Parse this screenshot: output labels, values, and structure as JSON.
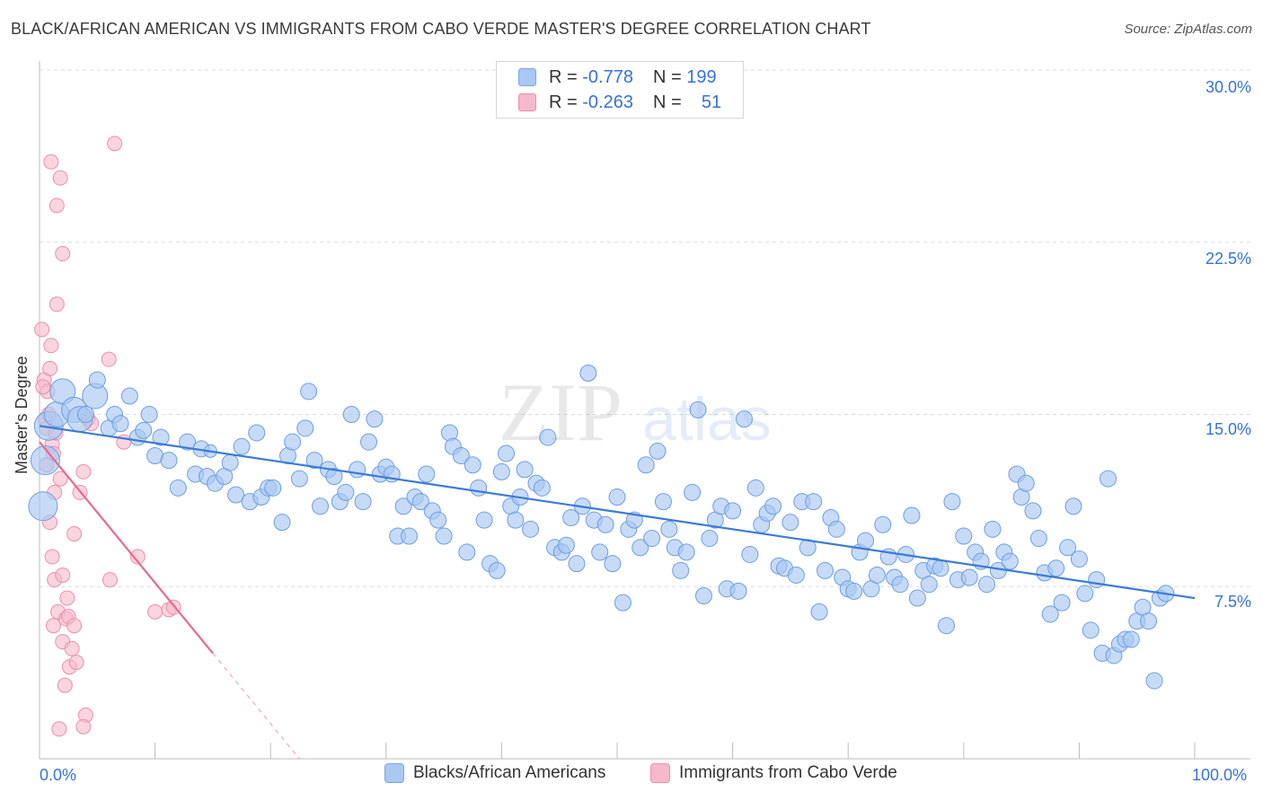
{
  "title": "BLACK/AFRICAN AMERICAN VS IMMIGRANTS FROM CABO VERDE MASTER'S DEGREE CORRELATION CHART",
  "source": "Source: ZipAtlas.com",
  "watermark": {
    "zip": "ZIP",
    "atlas": "atlas"
  },
  "legend": {
    "rows": [
      {
        "r_label": "R =",
        "r_value": "-0.778",
        "n_label": "N =",
        "n_value": "199",
        "color": "#a9c8f2"
      },
      {
        "r_label": "R =",
        "r_value": "-0.263",
        "n_label": "N =",
        "n_value": "51",
        "color": "#f6b9cb"
      }
    ]
  },
  "bottom_legend": [
    "Blacks/African Americans",
    "Immigrants from Cabo Verde"
  ],
  "chart_data": {
    "type": "scatter",
    "title": "BLACK/AFRICAN AMERICAN VS IMMIGRANTS FROM CABO VERDE MASTER'S DEGREE CORRELATION CHART",
    "xlabel": "",
    "ylabel": "Master's Degree",
    "xlim": [
      0,
      100
    ],
    "ylim": [
      0,
      30
    ],
    "x_tick_labels": [
      "0.0%",
      "100.0%"
    ],
    "y_tick_labels": [
      "7.5%",
      "15.0%",
      "22.5%",
      "30.0%"
    ],
    "y_ticks": [
      7.5,
      15,
      22.5,
      30
    ],
    "grid": true,
    "legend_position": "top-center",
    "colors": {
      "blue": "#3a7bd5",
      "blue_fill": "#a9c8f2",
      "pink": "#e56a93",
      "pink_fill": "#f6b9cb",
      "label": "#3572d6"
    },
    "series": [
      {
        "name": "Blacks/African Americans",
        "trend": {
          "x": [
            0,
            100
          ],
          "y": [
            14.5,
            7.0
          ]
        },
        "points": [
          [
            0.3,
            11.0,
            3
          ],
          [
            0.5,
            13.0,
            3
          ],
          [
            0.8,
            14.5,
            3
          ],
          [
            1.5,
            15.0,
            2
          ],
          [
            2.0,
            16.0,
            2
          ],
          [
            3.0,
            15.2,
            2
          ],
          [
            3.5,
            14.8,
            2
          ],
          [
            4.0,
            15.0,
            1
          ],
          [
            4.8,
            15.8,
            2
          ],
          [
            5.0,
            16.5,
            1
          ],
          [
            6.0,
            14.4,
            1
          ],
          [
            6.5,
            15.0,
            1
          ],
          [
            7.0,
            14.6,
            1
          ],
          [
            7.8,
            15.8,
            1
          ],
          [
            8.5,
            14.0,
            1
          ],
          [
            9.0,
            14.3,
            1
          ],
          [
            9.5,
            15.0,
            1
          ],
          [
            10.0,
            13.2,
            1
          ],
          [
            10.5,
            14.0,
            1
          ],
          [
            11.2,
            13.0,
            1
          ],
          [
            12.0,
            11.8,
            1
          ],
          [
            12.8,
            13.8,
            1
          ],
          [
            13.5,
            12.4,
            1
          ],
          [
            14.0,
            13.5,
            1
          ],
          [
            14.5,
            12.3,
            1
          ],
          [
            14.8,
            13.4,
            0
          ],
          [
            15.2,
            12.0,
            1
          ],
          [
            16.0,
            12.3,
            1
          ],
          [
            16.5,
            12.9,
            1
          ],
          [
            17.0,
            11.5,
            1
          ],
          [
            17.5,
            13.6,
            1
          ],
          [
            18.2,
            11.2,
            1
          ],
          [
            18.8,
            14.2,
            1
          ],
          [
            19.2,
            11.4,
            1
          ],
          [
            19.8,
            11.8,
            1
          ],
          [
            20.2,
            11.8,
            1
          ],
          [
            21.0,
            10.3,
            1
          ],
          [
            21.5,
            13.2,
            1
          ],
          [
            21.9,
            13.8,
            1
          ],
          [
            22.5,
            12.2,
            1
          ],
          [
            23.0,
            14.4,
            1
          ],
          [
            23.3,
            16.0,
            1
          ],
          [
            23.8,
            13.0,
            1
          ],
          [
            24.3,
            11.0,
            1
          ],
          [
            25.0,
            12.6,
            1
          ],
          [
            25.5,
            12.3,
            1
          ],
          [
            26.0,
            11.2,
            1
          ],
          [
            26.5,
            11.6,
            1
          ],
          [
            27.0,
            15.0,
            1
          ],
          [
            27.5,
            12.6,
            1
          ],
          [
            28.0,
            11.2,
            1
          ],
          [
            28.5,
            13.8,
            1
          ],
          [
            29.0,
            14.8,
            1
          ],
          [
            29.5,
            12.4,
            1
          ],
          [
            30.0,
            12.7,
            1
          ],
          [
            30.5,
            12.4,
            1
          ],
          [
            31.0,
            9.7,
            1
          ],
          [
            31.5,
            11.0,
            1
          ],
          [
            32.0,
            9.7,
            1
          ],
          [
            32.5,
            11.4,
            1
          ],
          [
            33.0,
            11.2,
            1
          ],
          [
            33.5,
            12.4,
            1
          ],
          [
            34.0,
            10.8,
            1
          ],
          [
            34.5,
            10.4,
            1
          ],
          [
            35.0,
            9.7,
            1
          ],
          [
            35.5,
            14.2,
            1
          ],
          [
            35.8,
            13.6,
            1
          ],
          [
            36.5,
            13.2,
            1
          ],
          [
            37.0,
            9.0,
            1
          ],
          [
            37.5,
            12.8,
            1
          ],
          [
            38.0,
            11.8,
            1
          ],
          [
            38.5,
            10.4,
            1
          ],
          [
            39.0,
            8.5,
            1
          ],
          [
            39.6,
            8.2,
            1
          ],
          [
            40.0,
            12.5,
            1
          ],
          [
            40.4,
            13.3,
            1
          ],
          [
            40.8,
            11.0,
            1
          ],
          [
            41.2,
            10.4,
            1
          ],
          [
            41.6,
            11.4,
            1
          ],
          [
            42.0,
            12.6,
            1
          ],
          [
            42.5,
            10.0,
            1
          ],
          [
            43.0,
            12.0,
            1
          ],
          [
            43.5,
            11.8,
            1
          ],
          [
            44.0,
            14.0,
            1
          ],
          [
            44.6,
            9.2,
            1
          ],
          [
            45.2,
            9.0,
            1
          ],
          [
            45.6,
            9.3,
            1
          ],
          [
            46.0,
            10.5,
            1
          ],
          [
            46.5,
            8.5,
            1
          ],
          [
            47.0,
            11.0,
            1
          ],
          [
            47.5,
            16.8,
            1
          ],
          [
            48.0,
            10.4,
            1
          ],
          [
            48.5,
            9.0,
            1
          ],
          [
            49.0,
            10.2,
            1
          ],
          [
            49.6,
            8.5,
            1
          ],
          [
            50.0,
            11.4,
            1
          ],
          [
            50.5,
            6.8,
            1
          ],
          [
            51.0,
            10.0,
            1
          ],
          [
            51.5,
            10.4,
            1
          ],
          [
            52.0,
            9.2,
            1
          ],
          [
            52.5,
            12.8,
            1
          ],
          [
            53.0,
            9.6,
            1
          ],
          [
            53.5,
            13.4,
            1
          ],
          [
            54.0,
            11.2,
            1
          ],
          [
            54.5,
            10.0,
            1
          ],
          [
            55.0,
            9.2,
            1
          ],
          [
            55.5,
            8.2,
            1
          ],
          [
            56.0,
            9.0,
            1
          ],
          [
            56.5,
            11.6,
            1
          ],
          [
            57.0,
            15.2,
            1
          ],
          [
            57.5,
            7.1,
            1
          ],
          [
            58.0,
            9.6,
            1
          ],
          [
            58.5,
            10.4,
            1
          ],
          [
            59.0,
            11.0,
            1
          ],
          [
            59.5,
            7.4,
            1
          ],
          [
            60.0,
            10.8,
            1
          ],
          [
            60.5,
            7.3,
            1
          ],
          [
            61.0,
            14.8,
            1
          ],
          [
            61.5,
            8.9,
            1
          ],
          [
            62.0,
            11.8,
            1
          ],
          [
            62.5,
            10.2,
            1
          ],
          [
            63.0,
            10.7,
            1
          ],
          [
            63.5,
            11.0,
            1
          ],
          [
            64.0,
            8.4,
            1
          ],
          [
            64.5,
            8.3,
            1
          ],
          [
            65.0,
            10.3,
            1
          ],
          [
            65.5,
            8.0,
            1
          ],
          [
            66.0,
            11.2,
            1
          ],
          [
            66.5,
            9.2,
            1
          ],
          [
            67.0,
            11.2,
            1
          ],
          [
            67.5,
            6.4,
            1
          ],
          [
            68.0,
            8.2,
            1
          ],
          [
            68.5,
            10.5,
            1
          ],
          [
            69.0,
            10.0,
            1
          ],
          [
            69.5,
            7.9,
            1
          ],
          [
            70.0,
            7.4,
            1
          ],
          [
            70.5,
            7.3,
            1
          ],
          [
            71.0,
            9.0,
            1
          ],
          [
            71.5,
            9.5,
            1
          ],
          [
            72.0,
            7.4,
            1
          ],
          [
            72.5,
            8.0,
            1
          ],
          [
            73.0,
            10.2,
            1
          ],
          [
            73.5,
            8.8,
            1
          ],
          [
            74.0,
            7.9,
            1
          ],
          [
            74.5,
            7.6,
            1
          ],
          [
            75.0,
            8.9,
            1
          ],
          [
            75.5,
            10.6,
            1
          ],
          [
            76.0,
            7.0,
            1
          ],
          [
            76.5,
            8.2,
            1
          ],
          [
            77.0,
            7.6,
            1
          ],
          [
            77.5,
            8.4,
            1
          ],
          [
            78.0,
            8.3,
            1
          ],
          [
            78.5,
            5.8,
            1
          ],
          [
            79.0,
            11.2,
            1
          ],
          [
            79.5,
            7.8,
            1
          ],
          [
            80.0,
            9.7,
            1
          ],
          [
            80.5,
            7.9,
            1
          ],
          [
            81.0,
            9.0,
            1
          ],
          [
            81.5,
            8.6,
            1
          ],
          [
            82.0,
            7.6,
            1
          ],
          [
            82.5,
            10.0,
            1
          ],
          [
            83.0,
            8.2,
            1
          ],
          [
            83.5,
            9.0,
            1
          ],
          [
            84.0,
            8.6,
            1
          ],
          [
            84.6,
            12.4,
            1
          ],
          [
            85.0,
            11.4,
            1
          ],
          [
            85.4,
            12.0,
            1
          ],
          [
            86.0,
            10.8,
            1
          ],
          [
            86.5,
            9.6,
            1
          ],
          [
            87.0,
            8.1,
            1
          ],
          [
            87.5,
            6.3,
            1
          ],
          [
            88.0,
            8.3,
            1
          ],
          [
            88.5,
            6.8,
            1
          ],
          [
            89.0,
            9.2,
            1
          ],
          [
            89.5,
            11.0,
            1
          ],
          [
            90.0,
            8.7,
            1
          ],
          [
            90.5,
            7.2,
            1
          ],
          [
            91.0,
            5.6,
            1
          ],
          [
            91.5,
            7.8,
            1
          ],
          [
            92.0,
            4.6,
            1
          ],
          [
            92.5,
            12.2,
            1
          ],
          [
            93.0,
            4.5,
            1
          ],
          [
            93.5,
            5.0,
            1
          ],
          [
            94.0,
            5.2,
            1
          ],
          [
            94.5,
            5.2,
            1
          ],
          [
            95.0,
            6.0,
            1
          ],
          [
            95.5,
            6.6,
            1
          ],
          [
            96.0,
            6.0,
            1
          ],
          [
            96.5,
            3.4,
            1
          ],
          [
            97.0,
            7.0,
            1
          ],
          [
            97.5,
            7.2,
            1
          ]
        ]
      },
      {
        "name": "Immigrants from Cabo Verde",
        "trend": {
          "x": [
            0,
            15
          ],
          "y": [
            13.8,
            4.6
          ]
        },
        "trend_dashed": {
          "x": [
            15,
            22.5
          ],
          "y": [
            4.6,
            0
          ]
        },
        "points": [
          [
            0.2,
            18.7,
            0
          ],
          [
            0.4,
            16.5,
            0
          ],
          [
            0.5,
            14.8,
            0
          ],
          [
            0.6,
            14.4,
            0
          ],
          [
            0.7,
            16.0,
            0
          ],
          [
            0.8,
            15.0,
            0
          ],
          [
            0.9,
            17.0,
            0
          ],
          [
            1.0,
            18.0,
            0
          ],
          [
            1.1,
            13.7,
            0
          ],
          [
            1.2,
            13.3,
            0
          ],
          [
            1.0,
            26.0,
            0
          ],
          [
            1.3,
            11.6,
            0
          ],
          [
            1.1,
            8.8,
            0
          ],
          [
            1.3,
            7.8,
            0
          ],
          [
            1.2,
            5.8,
            0
          ],
          [
            1.5,
            24.1,
            0
          ],
          [
            1.5,
            19.8,
            0
          ],
          [
            1.6,
            6.4,
            0
          ],
          [
            1.7,
            1.3,
            0
          ],
          [
            1.8,
            25.3,
            0
          ],
          [
            2.0,
            22.0,
            0
          ],
          [
            2.0,
            8.0,
            0
          ],
          [
            2.0,
            5.1,
            0
          ],
          [
            2.2,
            3.2,
            0
          ],
          [
            2.3,
            6.1,
            0
          ],
          [
            2.4,
            7.0,
            0
          ],
          [
            2.5,
            6.2,
            0
          ],
          [
            2.6,
            4.0,
            0
          ],
          [
            2.8,
            4.8,
            0
          ],
          [
            3.0,
            5.8,
            0
          ],
          [
            3.2,
            4.2,
            0
          ],
          [
            3.5,
            11.6,
            0
          ],
          [
            3.8,
            12.5,
            0
          ],
          [
            4.0,
            1.9,
            0
          ],
          [
            3.8,
            1.4,
            0
          ],
          [
            4.2,
            14.8,
            0
          ],
          [
            4.5,
            14.6,
            0
          ],
          [
            6.0,
            17.4,
            0
          ],
          [
            6.1,
            7.8,
            0
          ],
          [
            6.5,
            26.8,
            0
          ],
          [
            7.3,
            13.8,
            0
          ],
          [
            8.5,
            8.8,
            0
          ],
          [
            10.0,
            6.4,
            0
          ],
          [
            11.2,
            6.5,
            0
          ],
          [
            11.6,
            6.6,
            0
          ],
          [
            0.3,
            16.2,
            0
          ],
          [
            0.6,
            12.8,
            0
          ],
          [
            0.9,
            10.3,
            0
          ],
          [
            1.4,
            14.2,
            0
          ],
          [
            1.8,
            12.2,
            0
          ],
          [
            3.0,
            9.8,
            0
          ]
        ]
      }
    ]
  }
}
